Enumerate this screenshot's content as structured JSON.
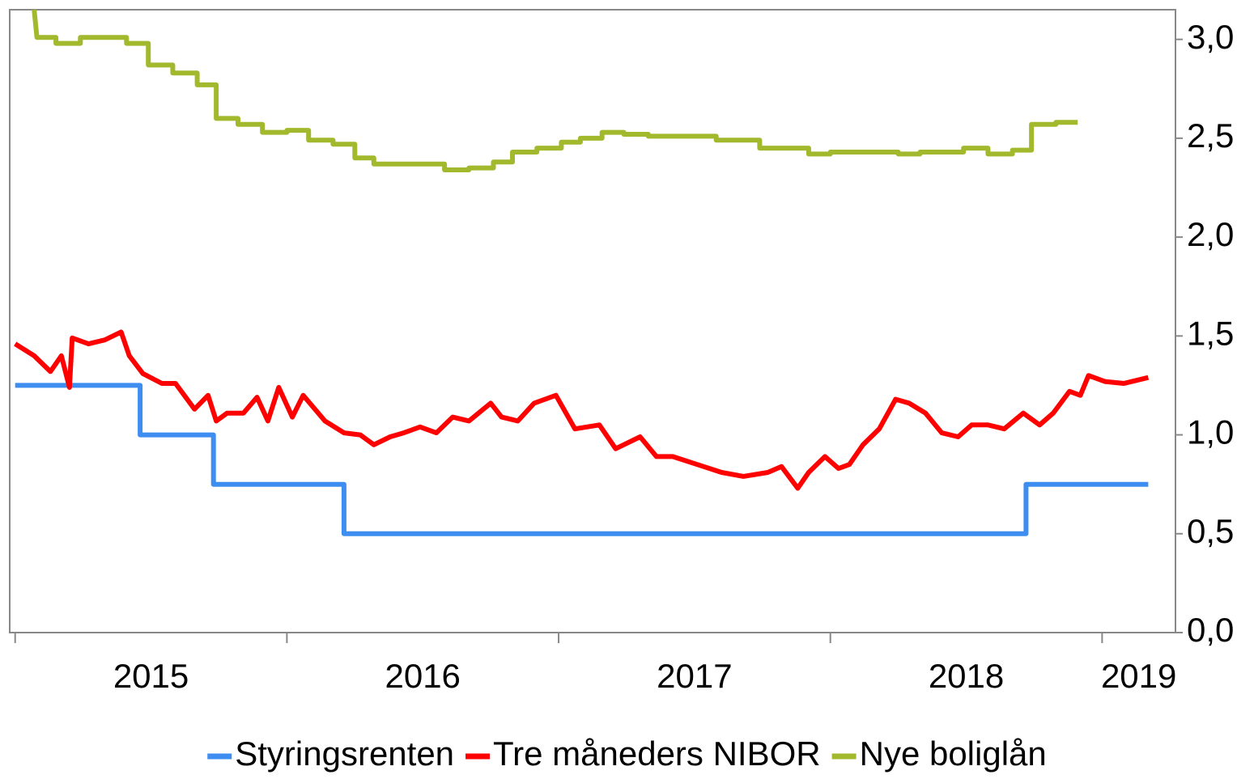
{
  "chart_data": {
    "type": "line",
    "xlim": [
      2014.98,
      2019.27
    ],
    "xticks": [
      2015,
      2016,
      2017,
      2018,
      2019
    ],
    "ylim": [
      0,
      3.15
    ],
    "yticks": [
      {
        "value": 0,
        "label": "0,0"
      },
      {
        "value": 0.5,
        "label": "0,5"
      },
      {
        "value": 1,
        "label": "1,0"
      },
      {
        "value": 1.5,
        "label": "1,5"
      },
      {
        "value": 2,
        "label": "2,0"
      },
      {
        "value": 2.5,
        "label": "2,5"
      },
      {
        "value": 3,
        "label": "3,0"
      }
    ],
    "y_axis_side": "right",
    "legend": "bottom",
    "series": [
      {
        "name": "Styringsrenten",
        "color": "#3d8ef0",
        "x": [
          2015.0,
          2015.46,
          2015.46,
          2015.73,
          2015.73,
          2016.21,
          2016.21,
          2018.72,
          2018.72,
          2019.17
        ],
        "values": [
          1.25,
          1.25,
          1.0,
          1.0,
          0.75,
          0.75,
          0.5,
          0.5,
          0.75,
          0.75
        ]
      },
      {
        "name": "Tre måneders NIBOR",
        "color": "#ff0000",
        "x": [
          2015.0,
          2015.07,
          2015.13,
          2015.17,
          2015.2,
          2015.21,
          2015.27,
          2015.33,
          2015.39,
          2015.42,
          2015.47,
          2015.54,
          2015.59,
          2015.66,
          2015.71,
          2015.74,
          2015.78,
          2015.84,
          2015.89,
          2015.93,
          2015.97,
          2016.02,
          2016.06,
          2016.14,
          2016.21,
          2016.27,
          2016.32,
          2016.38,
          2016.43,
          2016.49,
          2016.55,
          2016.61,
          2016.67,
          2016.75,
          2016.79,
          2016.85,
          2016.91,
          2016.99,
          2017.06,
          2017.15,
          2017.21,
          2017.3,
          2017.36,
          2017.42,
          2017.51,
          2017.6,
          2017.68,
          2017.77,
          2017.82,
          2017.88,
          2017.92,
          2017.98,
          2018.03,
          2018.07,
          2018.12,
          2018.18,
          2018.24,
          2018.29,
          2018.35,
          2018.41,
          2018.47,
          2018.52,
          2018.58,
          2018.64,
          2018.71,
          2018.77,
          2018.82,
          2018.88,
          2018.92,
          2018.95,
          2019.01,
          2019.08,
          2019.17
        ],
        "values": [
          1.46,
          1.4,
          1.32,
          1.4,
          1.24,
          1.49,
          1.46,
          1.48,
          1.52,
          1.4,
          1.31,
          1.26,
          1.26,
          1.13,
          1.2,
          1.07,
          1.11,
          1.11,
          1.19,
          1.07,
          1.24,
          1.09,
          1.2,
          1.07,
          1.01,
          1.0,
          0.95,
          0.99,
          1.01,
          1.04,
          1.01,
          1.09,
          1.07,
          1.16,
          1.09,
          1.07,
          1.16,
          1.2,
          1.03,
          1.05,
          0.93,
          0.99,
          0.89,
          0.89,
          0.85,
          0.81,
          0.79,
          0.81,
          0.84,
          0.73,
          0.81,
          0.89,
          0.83,
          0.85,
          0.95,
          1.03,
          1.18,
          1.16,
          1.11,
          1.01,
          0.99,
          1.05,
          1.05,
          1.03,
          1.11,
          1.05,
          1.11,
          1.22,
          1.2,
          1.3,
          1.27,
          1.26,
          1.29
        ]
      },
      {
        "name": "Nye boliglån",
        "color": "#a3b92d",
        "x": [
          2015.07,
          2015.08,
          2015.15,
          2015.15,
          2015.24,
          2015.24,
          2015.41,
          2015.41,
          2015.49,
          2015.49,
          2015.58,
          2015.58,
          2015.67,
          2015.67,
          2015.74,
          2015.74,
          2015.82,
          2015.82,
          2015.91,
          2015.91,
          2016.0,
          2016.0,
          2016.08,
          2016.08,
          2016.17,
          2016.17,
          2016.25,
          2016.25,
          2016.32,
          2016.32,
          2016.58,
          2016.58,
          2016.67,
          2016.67,
          2016.76,
          2016.76,
          2016.83,
          2016.83,
          2016.92,
          2016.92,
          2017.01,
          2017.01,
          2017.08,
          2017.08,
          2017.16,
          2017.16,
          2017.24,
          2017.24,
          2017.33,
          2017.33,
          2017.58,
          2017.58,
          2017.74,
          2017.74,
          2017.92,
          2017.92,
          2018.0,
          2018.0,
          2018.25,
          2018.25,
          2018.33,
          2018.33,
          2018.49,
          2018.49,
          2018.58,
          2018.58,
          2018.67,
          2018.67,
          2018.74,
          2018.74,
          2018.83,
          2018.83,
          2018.91
        ],
        "values": [
          3.15,
          3.01,
          3.01,
          2.98,
          2.98,
          3.01,
          3.01,
          2.98,
          2.98,
          2.87,
          2.87,
          2.83,
          2.83,
          2.77,
          2.77,
          2.6,
          2.6,
          2.57,
          2.57,
          2.53,
          2.53,
          2.54,
          2.54,
          2.49,
          2.49,
          2.47,
          2.47,
          2.4,
          2.4,
          2.37,
          2.37,
          2.34,
          2.34,
          2.35,
          2.35,
          2.38,
          2.38,
          2.43,
          2.43,
          2.45,
          2.45,
          2.48,
          2.48,
          2.5,
          2.5,
          2.53,
          2.53,
          2.52,
          2.52,
          2.51,
          2.51,
          2.49,
          2.49,
          2.45,
          2.45,
          2.42,
          2.42,
          2.43,
          2.43,
          2.42,
          2.42,
          2.43,
          2.43,
          2.45,
          2.45,
          2.42,
          2.42,
          2.44,
          2.44,
          2.57,
          2.57,
          2.58,
          2.58
        ]
      }
    ]
  }
}
